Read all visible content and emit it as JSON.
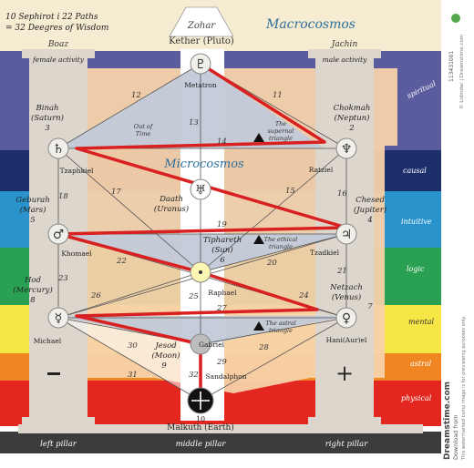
{
  "header": {
    "zohar": "Zohar",
    "kether": "Kether (Pluto)",
    "macrocosmos": "Macrocosmos",
    "caption_line1": "10 Sephirot  i 22 Paths",
    "caption_line2": "= 32 Deegres of Wisdom"
  },
  "pillars": {
    "boaz": "Boaz",
    "jachin": "Jachin",
    "female": "female activity",
    "male": "male activity",
    "left": "left pillar",
    "middle": "middle pillar",
    "right": "right pillar",
    "minus": "−",
    "plus": "+"
  },
  "bands": {
    "spiritual": "spiritual",
    "causal": "causal",
    "intuitive": "intuitive",
    "logic": "logic",
    "mental": "mental",
    "astral": "astral",
    "physical": "physical"
  },
  "microcosmos": "Microcosmos",
  "triangles": {
    "out_of_time": [
      "Out of",
      "Time"
    ],
    "supernal": [
      "The",
      "supernal",
      "triangle"
    ],
    "ethical": [
      "The ethical",
      "triangle"
    ],
    "astral": [
      "The astral",
      "triangle"
    ]
  },
  "sephirot": {
    "binah": [
      "Binah",
      "(Saturn)",
      "3"
    ],
    "chokmah": [
      "Chokmah",
      "(Neptun)",
      "2"
    ],
    "daath": [
      "Daath",
      "(Uranus)"
    ],
    "geburah": [
      "Geburah",
      "(Mars)",
      "5"
    ],
    "chesed": [
      "Chesed",
      "(Jupiter)",
      "4"
    ],
    "tiphareth": [
      "Tiphareth",
      "(Sun)",
      "6"
    ],
    "hod": [
      "Hod",
      "(Mercury)",
      "8"
    ],
    "netzach": [
      "Netzach",
      "(Venus)",
      "7"
    ],
    "jesod": [
      "Jesod",
      "(Moon)",
      "9"
    ],
    "malkuth": [
      "10",
      "Malkuth (Earth)"
    ]
  },
  "angels": {
    "metatron": "Metatron",
    "tzaphkiel": "Tzaphkiel",
    "ratziel": "Ratziel",
    "khomael": "Khomael",
    "tzadkiel": "Tzadkiel",
    "raphael": "Raphael",
    "michael": "Michael",
    "haniel": "Hani(Aur)el",
    "gabriel": "Gabriel",
    "sandalphon": "Sandalphon"
  },
  "paths": [
    "11",
    "12",
    "13",
    "14",
    "15",
    "16",
    "17",
    "18",
    "19",
    "20",
    "21",
    "22",
    "23",
    "24",
    "25",
    "26",
    "27",
    "28",
    "29",
    "30",
    "31",
    "32"
  ],
  "stock": {
    "id": "113431001",
    "credit": "© Lidindar | Dreamstime.com",
    "from": "Download from",
    "site": "Dreamstime.com",
    "note": "This watermarked comp image is for previewing purposes only."
  },
  "colors": {
    "spiritual": "#5b5c9d",
    "causal": "#1d2f6b",
    "intuitive": "#2a93cc",
    "logic": "#2aa152",
    "mental": "#f6e746",
    "astral": "#f08622",
    "physical": "#e3261f",
    "pillar": "#ddd6cc",
    "peach": "#f7d1aa",
    "bluegray": "#c2cad8",
    "lightning": "#d92020",
    "base": "#3c3c3c",
    "top": "#f6ecd2"
  }
}
